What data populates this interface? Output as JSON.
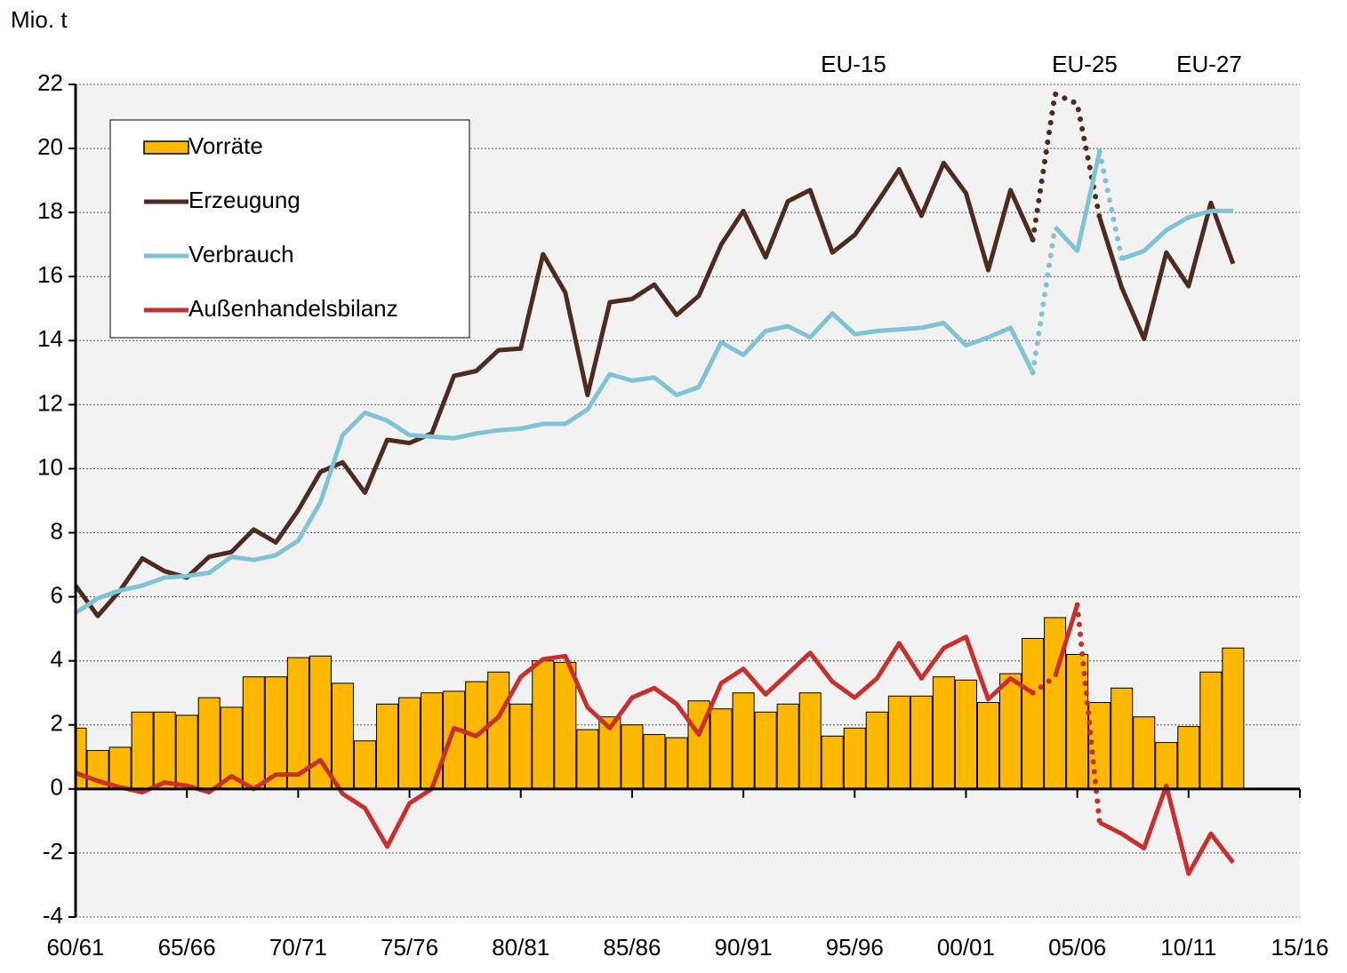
{
  "chart_data": {
    "type": "bar-line",
    "unit_label": "Mio. t",
    "annotations": [
      "EU-15",
      "EU-25",
      "EU-27"
    ],
    "categories": [
      "60/61",
      null,
      null,
      null,
      null,
      "65/66",
      null,
      null,
      null,
      null,
      "70/71",
      null,
      null,
      null,
      null,
      "75/76",
      null,
      null,
      null,
      null,
      "80/81",
      null,
      null,
      null,
      null,
      "85/86",
      null,
      null,
      null,
      null,
      "90/91",
      null,
      null,
      null,
      null,
      "95/96",
      null,
      null,
      null,
      null,
      "00/01",
      null,
      null,
      null,
      null,
      "05/06",
      null,
      null,
      null,
      null,
      "10/11",
      null,
      null,
      null,
      null,
      "15/16"
    ],
    "ylim": [
      -4,
      22
    ],
    "yticks": [
      -4,
      -2,
      0,
      2,
      4,
      6,
      8,
      10,
      12,
      14,
      16,
      18,
      20,
      22
    ],
    "grid": true,
    "legend": "upper left",
    "series": [
      {
        "name": "Vorräte",
        "kind": "bar",
        "color": "#ffb800",
        "values": [
          1.9,
          1.2,
          1.3,
          2.4,
          2.4,
          2.3,
          2.85,
          2.55,
          3.5,
          3.5,
          4.1,
          4.15,
          3.3,
          1.5,
          2.65,
          2.85,
          3.0,
          3.05,
          3.35,
          3.65,
          2.65,
          4.0,
          3.95,
          1.85,
          2.25,
          2.0,
          1.7,
          1.6,
          2.75,
          2.5,
          3.0,
          2.4,
          2.65,
          3.0,
          1.65,
          1.9,
          2.4,
          2.9,
          2.9,
          3.5,
          3.4,
          2.7,
          3.6,
          4.7,
          5.35,
          4.2,
          2.7,
          3.15,
          2.25,
          1.45,
          1.95,
          3.65,
          4.4,
          null,
          null,
          null
        ]
      },
      {
        "name": "Erzeugung",
        "kind": "line",
        "color": "#4f2a1e",
        "dotted_segments": [
          [
            43,
            46
          ]
        ],
        "values": [
          6.35,
          5.4,
          6.2,
          7.2,
          6.8,
          6.6,
          7.25,
          7.4,
          8.1,
          7.7,
          8.7,
          9.9,
          10.2,
          9.25,
          10.9,
          10.8,
          11.1,
          12.9,
          13.05,
          13.7,
          13.75,
          16.7,
          15.5,
          12.3,
          15.2,
          15.3,
          15.75,
          14.8,
          15.4,
          17.0,
          18.05,
          16.6,
          18.35,
          18.7,
          16.75,
          17.3,
          18.3,
          19.35,
          17.9,
          19.55,
          18.6,
          16.2,
          18.7,
          17.15,
          21.7,
          21.4,
          17.85,
          15.65,
          14.05,
          16.75,
          15.7,
          18.3,
          16.4,
          null,
          null,
          null
        ]
      },
      {
        "name": "Verbrauch",
        "kind": "line",
        "color": "#7fc4d6",
        "dotted_segments": [
          [
            43,
            44
          ],
          [
            46,
            47
          ]
        ],
        "values": [
          5.5,
          5.95,
          6.2,
          6.35,
          6.6,
          6.65,
          6.75,
          7.25,
          7.15,
          7.3,
          7.75,
          8.95,
          11.05,
          11.75,
          11.5,
          11.05,
          11.0,
          10.95,
          11.1,
          11.2,
          11.25,
          11.4,
          11.4,
          11.85,
          12.95,
          12.75,
          12.85,
          12.3,
          12.55,
          13.95,
          13.55,
          14.3,
          14.45,
          14.1,
          14.85,
          14.2,
          14.3,
          14.35,
          14.4,
          14.55,
          13.85,
          14.1,
          14.4,
          13.0,
          17.55,
          16.8,
          19.9,
          16.55,
          16.8,
          17.45,
          17.85,
          18.05,
          18.05,
          null,
          null,
          null
        ]
      },
      {
        "name": "Außenhandelsbilanz",
        "kind": "line",
        "color": "#c8302e",
        "dotted_segments": [
          [
            43,
            44
          ],
          [
            45,
            46
          ]
        ],
        "values": [
          0.5,
          0.25,
          0.05,
          -0.1,
          0.2,
          0.1,
          -0.1,
          0.4,
          0.0,
          0.45,
          0.45,
          0.9,
          -0.15,
          -0.6,
          -1.8,
          -0.45,
          0.0,
          1.9,
          1.65,
          2.25,
          3.5,
          4.05,
          4.15,
          2.55,
          1.9,
          2.85,
          3.15,
          2.65,
          1.7,
          3.3,
          3.75,
          2.95,
          3.6,
          4.25,
          3.35,
          2.85,
          3.45,
          4.55,
          3.45,
          4.4,
          4.75,
          2.8,
          3.45,
          3.0,
          3.5,
          5.75,
          -1.05,
          -1.4,
          -1.85,
          0.1,
          -2.65,
          -1.4,
          -2.3,
          null,
          null,
          null
        ]
      }
    ]
  }
}
